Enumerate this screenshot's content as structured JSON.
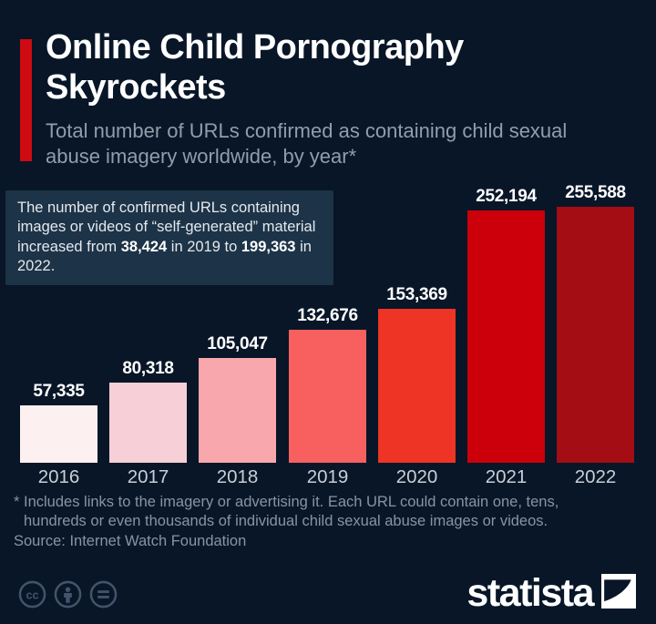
{
  "page": {
    "background_color": "#081628",
    "accent_color": "#ce0b11"
  },
  "header": {
    "title_line1": "Online Child Pornography",
    "title_line2": "Skyrockets",
    "subtitle": "Total number of URLs confirmed as containing child sexual abuse imagery worldwide, by year*"
  },
  "annotation": {
    "part1": "The number of confirmed URLs containing images or videos of “self-generated” material increased from ",
    "bold1": "38,424",
    "part2": " in 2019 to ",
    "bold2": "199,363",
    "part3": " in 2022."
  },
  "chart_data": {
    "type": "bar",
    "categories": [
      "2016",
      "2017",
      "2018",
      "2019",
      "2020",
      "2021",
      "2022"
    ],
    "values": [
      57335,
      80318,
      105047,
      132676,
      153369,
      252194,
      255588
    ],
    "value_labels": [
      "57,335",
      "80,318",
      "105,047",
      "132,676",
      "153,369",
      "252,194",
      "255,588"
    ],
    "bar_colors": [
      "#fdf0f1",
      "#f6d0d6",
      "#f8a8ad",
      "#f7605f",
      "#ee3424",
      "#cc000a",
      "#a30d13"
    ],
    "title": "Online Child Pornography Skyrockets",
    "subtitle": "Total number of URLs confirmed as containing child sexual abuse imagery worldwide, by year*",
    "xlabel": "",
    "ylabel": "",
    "ylim": [
      0,
      255588
    ],
    "grid": false,
    "legend": false,
    "value_label_color": "#ffffff",
    "tick_label_color": "#c9ced6"
  },
  "footer": {
    "footnote_line1": "* Includes links to the imagery or advertising it. Each URL could contain one, tens,",
    "footnote_line2": "hundreds or even thousands of individual child sexual abuse images or videos.",
    "source": "Source: Internet Watch Foundation"
  },
  "branding": {
    "logo_text": "statista",
    "license_icons": [
      "cc-icon",
      "attribution-icon",
      "no-derivatives-icon"
    ],
    "icon_color": "#43536b"
  }
}
